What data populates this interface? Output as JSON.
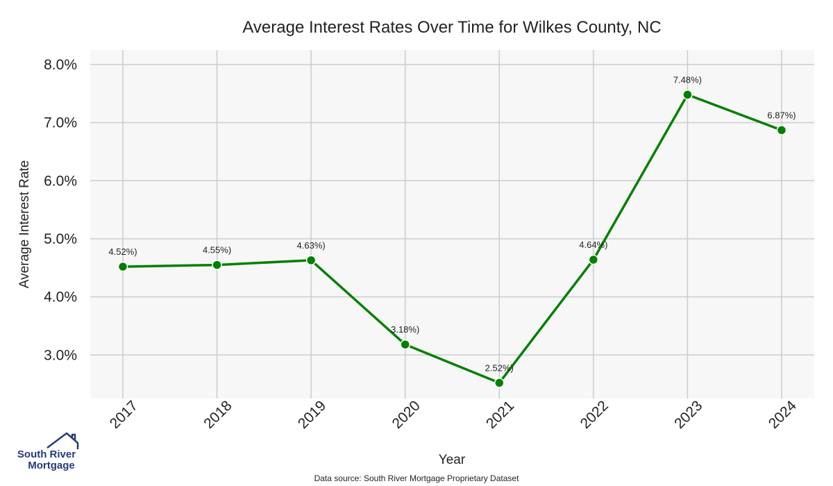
{
  "chart_data": {
    "type": "line",
    "title": "Average Interest Rates Over Time for Wilkes County, NC",
    "xlabel": "Year",
    "ylabel": "Average Interest Rate",
    "categories": [
      "2017",
      "2018",
      "2019",
      "2020",
      "2021",
      "2022",
      "2023",
      "2024"
    ],
    "values": [
      4.52,
      4.55,
      4.63,
      3.18,
      2.52,
      4.64,
      7.48,
      6.87
    ],
    "data_labels": [
      "4.52%)",
      "4.55%)",
      "4.63%)",
      "3.18%)",
      "2.52%)",
      "4.64%)",
      "7.48%)",
      "6.87%)"
    ],
    "y_ticks": [
      "3.0%",
      "4.0%",
      "5.0%",
      "6.0%",
      "7.0%",
      "8.0%"
    ],
    "y_tick_values": [
      3,
      4,
      5,
      6,
      7,
      8
    ],
    "ylim": [
      2.25,
      8.25
    ],
    "grid": true,
    "legend": "none",
    "line_color": "#008000",
    "plot_background": "#f7f7f7",
    "grid_color": "#cccccc"
  },
  "footer": {
    "source": "Data source: South River Mortgage Proprietary Dataset"
  },
  "logo": {
    "line1": "South River",
    "line2": "Mortgage",
    "color": "#253a7a"
  }
}
